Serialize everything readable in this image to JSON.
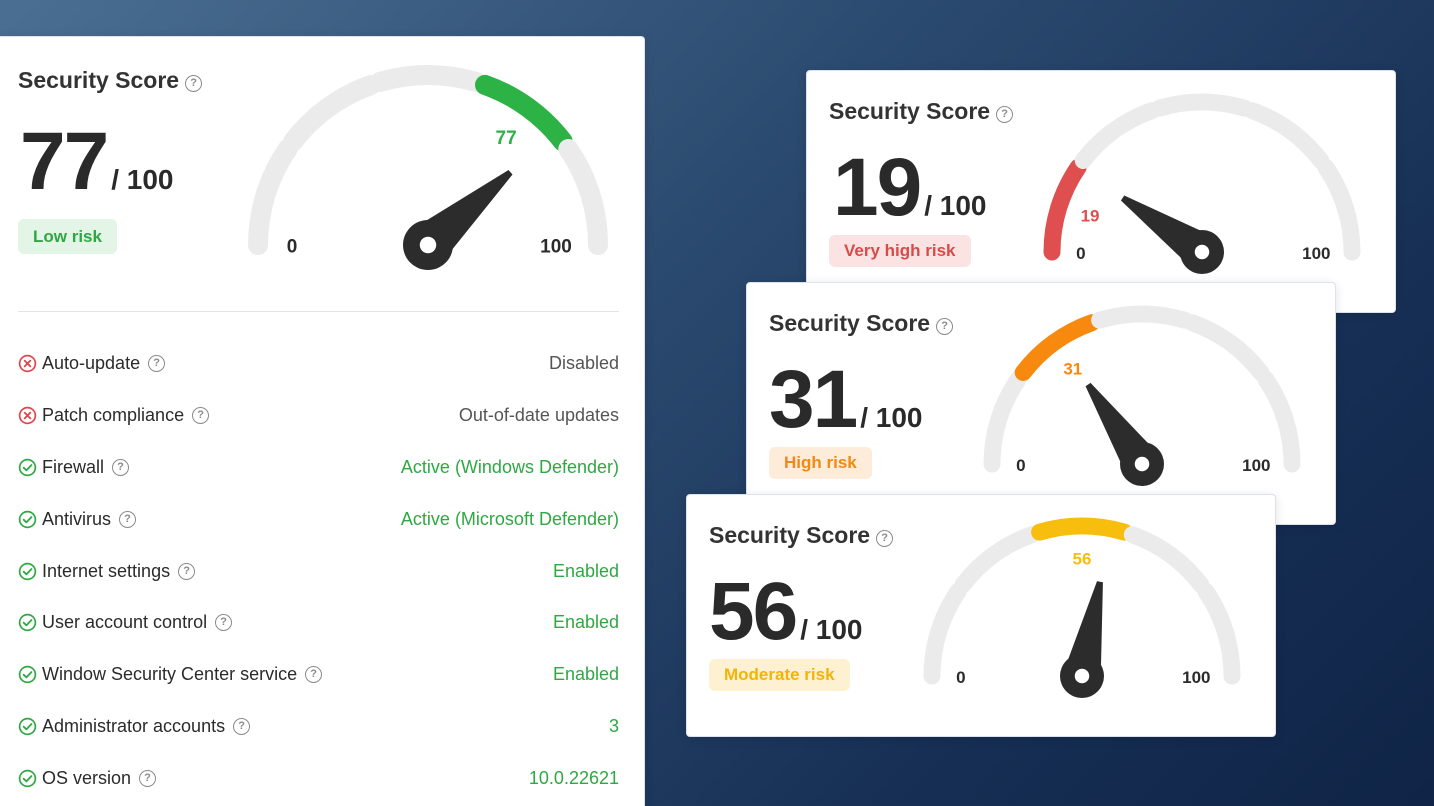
{
  "main": {
    "title": "Security Score",
    "score": "77",
    "denominator": "/ 100",
    "badge": "Low risk",
    "gauge": {
      "value": 77,
      "max": 100,
      "value_label": "77",
      "min_label": "0",
      "max_label": "100",
      "color": "#2db245"
    },
    "badge_colors": {
      "bg": "#e3f5e6",
      "fg": "#2fa843"
    },
    "items": [
      {
        "label": "Auto-update",
        "status": "fail",
        "value": "Disabled"
      },
      {
        "label": "Patch compliance",
        "status": "fail",
        "value": "Out-of-date updates"
      },
      {
        "label": "Firewall",
        "status": "pass",
        "value": "Active (Windows Defender)"
      },
      {
        "label": "Antivirus",
        "status": "pass",
        "value": "Active (Microsoft Defender)"
      },
      {
        "label": "Internet settings",
        "status": "pass",
        "value": "Enabled"
      },
      {
        "label": "User account control",
        "status": "pass",
        "value": "Enabled"
      },
      {
        "label": "Window Security Center service",
        "status": "pass",
        "value": "Enabled"
      },
      {
        "label": "Administrator accounts",
        "status": "pass",
        "value": "3"
      },
      {
        "label": "OS version",
        "status": "pass",
        "value": "10.0.22621"
      }
    ],
    "status_icons": {
      "fail": "x-circle-icon",
      "pass": "check-circle-icon"
    },
    "status_colors": {
      "fail": "#e0474a",
      "pass": "#2fa843"
    }
  },
  "cards": [
    {
      "title": "Security Score",
      "score": "19",
      "denominator": "/ 100",
      "badge": "Very high risk",
      "badge_colors": {
        "bg": "#fbe3e3",
        "fg": "#d94b4b"
      },
      "gauge": {
        "value": 19,
        "max": 100,
        "value_label": "19",
        "min_label": "0",
        "max_label": "100",
        "color": "#df4f4f"
      }
    },
    {
      "title": "Security Score",
      "score": "31",
      "denominator": "/ 100",
      "badge": "High risk",
      "badge_colors": {
        "bg": "#fdecd9",
        "fg": "#f08a10"
      },
      "gauge": {
        "value": 31,
        "max": 100,
        "value_label": "31",
        "min_label": "0",
        "max_label": "100",
        "color": "#f7890f"
      }
    },
    {
      "title": "Security Score",
      "score": "56",
      "denominator": "/ 100",
      "badge": "Moderate risk",
      "badge_colors": {
        "bg": "#fdf1d2",
        "fg": "#f0b40a"
      },
      "gauge": {
        "value": 56,
        "max": 100,
        "value_label": "56",
        "min_label": "0",
        "max_label": "100",
        "color": "#f7be0e"
      }
    }
  ]
}
